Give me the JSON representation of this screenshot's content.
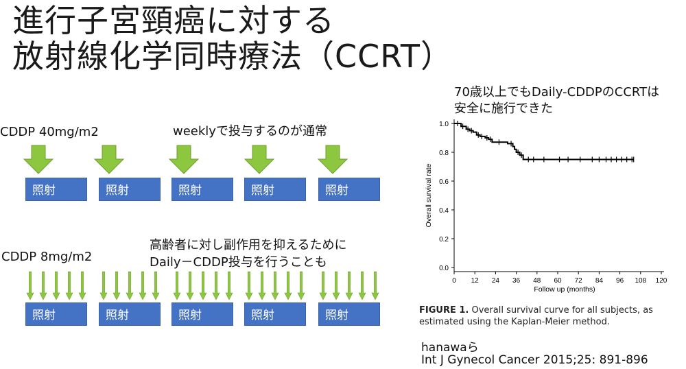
{
  "slide": {
    "title_line1": "進行子宮頸癌に対する",
    "title_line2": "放射線化学同時療法（CCRT）"
  },
  "weekly": {
    "dose_label": "CDDP 40mg/m2",
    "note": "weeklyで投与するのが通常",
    "boxes": [
      "照射",
      "照射",
      "照射",
      "照射",
      "照射"
    ]
  },
  "daily": {
    "dose_label": "CDDP  8mg/m2",
    "note_line1": "高齢者に対し副作用を抑えるために",
    "note_line2": "Daily－CDDP投与を行うことも",
    "boxes": [
      "照射",
      "照射",
      "照射",
      "照射",
      "照射"
    ]
  },
  "finding": {
    "line1": "70歳以上でもDaily-CDDPのCCRTは",
    "line2": "安全に施行できた"
  },
  "figure": {
    "caption_prefix": "FIGURE 1.",
    "caption_line1": " Overall survival curve for all subjects, as",
    "caption_line2": "estimated using the Kaplan-Meier method."
  },
  "reference": {
    "author": "hanawaら",
    "citation": "Int J Gynecol Cancer 2015;25: 891-896"
  },
  "colors": {
    "arrow_green": "#8dc63f",
    "box_blue": "#4472c4"
  },
  "chart_data": {
    "type": "line",
    "title": "",
    "xlabel": "Follow up (months)",
    "ylabel": "Overall survival rate",
    "xlim": [
      0,
      120
    ],
    "ylim": [
      0,
      1.0
    ],
    "xticks": [
      0,
      12,
      24,
      36,
      48,
      60,
      72,
      84,
      96,
      108,
      120
    ],
    "yticks": [
      "0.0",
      "0.2",
      "0.4",
      "0.6",
      "0.8",
      "1.0"
    ],
    "step_x": [
      0,
      4,
      7,
      9,
      11,
      13,
      15,
      18,
      20,
      22,
      31,
      34,
      35,
      36,
      38,
      40,
      104
    ],
    "step_y": [
      1.0,
      0.98,
      0.96,
      0.95,
      0.94,
      0.92,
      0.91,
      0.9,
      0.89,
      0.87,
      0.86,
      0.84,
      0.82,
      0.8,
      0.78,
      0.75,
      0.75
    ],
    "censored_x": [
      2,
      5,
      8,
      10,
      14,
      16,
      19,
      21,
      26,
      33,
      37,
      39,
      43,
      46,
      52,
      61,
      66,
      73,
      80,
      84,
      88,
      91,
      94,
      97,
      100,
      103,
      104
    ]
  }
}
